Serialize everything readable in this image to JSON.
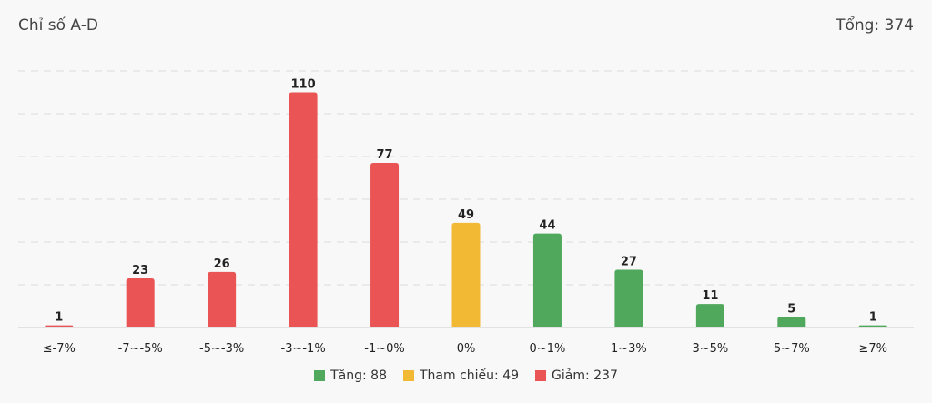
{
  "header": {
    "title": "Chỉ số A-D",
    "total": "Tổng: 374"
  },
  "chart_data": {
    "type": "bar",
    "categories": [
      "≤-7%",
      "-7~-5%",
      "-5~-3%",
      "-3~-1%",
      "-1~0%",
      "0%",
      "0~1%",
      "1~3%",
      "3~5%",
      "5~7%",
      "≥7%"
    ],
    "values": [
      1,
      23,
      26,
      110,
      77,
      49,
      44,
      27,
      11,
      5,
      1
    ],
    "groups": [
      "down",
      "down",
      "down",
      "down",
      "down",
      "ref",
      "up",
      "up",
      "up",
      "up",
      "up"
    ],
    "ylim": [
      0,
      120
    ],
    "grid": true,
    "legend_position": "bottom",
    "colors": {
      "up": "#4fa85c",
      "ref": "#f2b935",
      "down": "#ea5455",
      "grid": "#dddddd",
      "axis": "#cccccc"
    }
  },
  "legend": [
    {
      "key": "up",
      "label": "Tăng: 88"
    },
    {
      "key": "ref",
      "label": "Tham chiếu: 49"
    },
    {
      "key": "down",
      "label": "Giảm: 237"
    }
  ]
}
